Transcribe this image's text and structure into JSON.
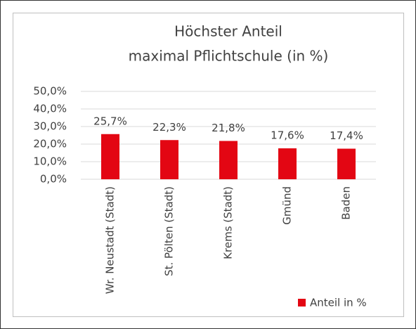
{
  "chart_data": {
    "type": "bar",
    "title": [
      "Höchster Anteil",
      "maximal Pflichtschule (in %)"
    ],
    "categories": [
      "Wr. Neustadt (Stadt)",
      "St. Pölten (Stadt)",
      "Krems (Stadt)",
      "Gmünd",
      "Baden"
    ],
    "series": [
      {
        "name": "Anteil in %",
        "color": "#e30613",
        "values": [
          25.7,
          22.3,
          21.8,
          17.6,
          17.4
        ],
        "value_labels": [
          "25,7%",
          "22,3%",
          "21,8%",
          "17,6%",
          "17,4%"
        ]
      }
    ],
    "ylim": [
      0,
      50
    ],
    "yticks": [
      {
        "value": 0,
        "label": "0,0%"
      },
      {
        "value": 10,
        "label": "10,0%"
      },
      {
        "value": 20,
        "label": "20,0%"
      },
      {
        "value": 30,
        "label": "30,0%"
      },
      {
        "value": 40,
        "label": "40,0%"
      },
      {
        "value": 50,
        "label": "50,0%"
      }
    ],
    "grid": true,
    "legend": "bottom-right"
  }
}
